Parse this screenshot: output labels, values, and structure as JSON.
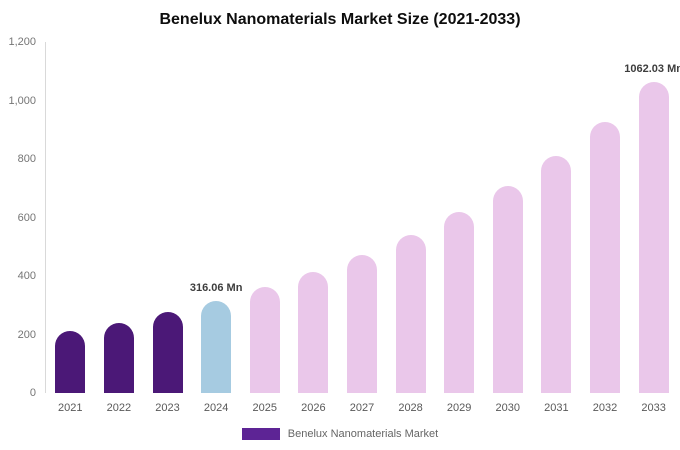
{
  "chart_data": {
    "type": "bar",
    "title": "Benelux Nanomaterials Market Size (2021-2033)",
    "categories": [
      "2021",
      "2022",
      "2023",
      "2024",
      "2025",
      "2026",
      "2027",
      "2028",
      "2029",
      "2030",
      "2031",
      "2032",
      "2033"
    ],
    "values": [
      211,
      241,
      276,
      316.06,
      362,
      414,
      473,
      541,
      620,
      709,
      811,
      928,
      1062.03
    ],
    "ylim": [
      0,
      1200
    ],
    "yticks": [
      0,
      200,
      400,
      600,
      800,
      1000,
      1200
    ],
    "ytick_labels": [
      "0",
      "200",
      "400",
      "600",
      "800",
      "1,000",
      "1,200"
    ],
    "bar_colors": [
      "#4b1877",
      "#4b1877",
      "#4b1877",
      "#a6cbe1",
      "#eac7ea",
      "#eac7ea",
      "#eac7ea",
      "#eac7ea",
      "#eac7ea",
      "#eac7ea",
      "#eac7ea",
      "#eac7ea",
      "#eac7ea"
    ],
    "annotations": [
      {
        "index": 3,
        "text": "316.06 Mn"
      },
      {
        "index": 12,
        "text": "1062.03 Mn"
      }
    ],
    "grid": false,
    "legend_position": "bottom",
    "legend": [
      {
        "label": "Benelux Nanomaterials Market",
        "color": "#5d2495"
      }
    ]
  }
}
